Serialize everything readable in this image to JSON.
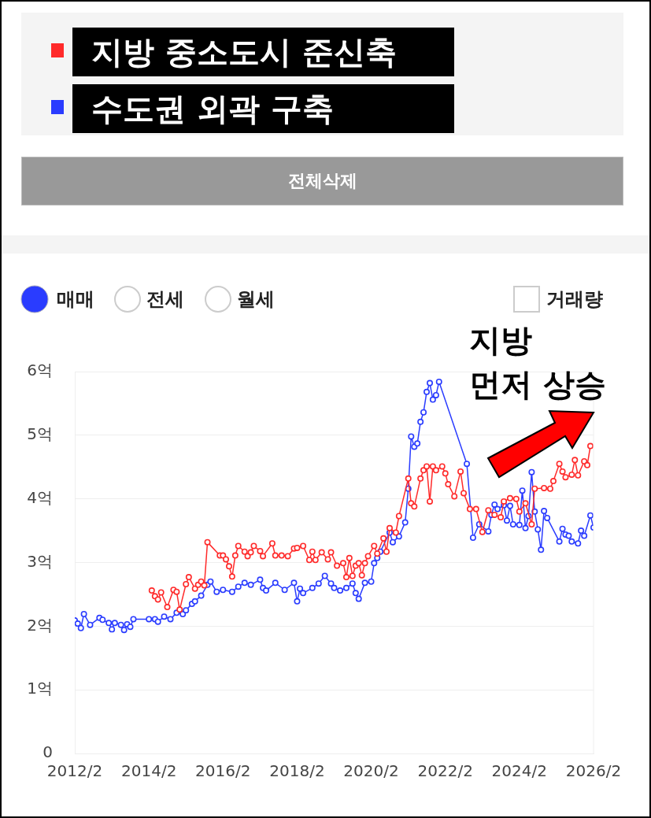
{
  "chart_data": {
    "type": "line",
    "legend": "top left",
    "grid": "y",
    "marker": "circle",
    "line_style": "solid",
    "xlim": [
      "2012-02",
      "2026-02"
    ],
    "xticks": [
      {
        "value": "2012-02",
        "label": "2012/2"
      },
      {
        "value": "2014-02",
        "label": "2014/2"
      },
      {
        "value": "2016-02",
        "label": "2016/2"
      },
      {
        "value": "2018-02",
        "label": "2018/2"
      },
      {
        "value": "2020-02",
        "label": "2020/2"
      },
      {
        "value": "2022-02",
        "label": "2022/2"
      },
      {
        "value": "2024-02",
        "label": "2024/2"
      },
      {
        "value": "2026-02",
        "label": "2026/2"
      }
    ],
    "ylim": [
      0,
      6
    ],
    "yticks": [
      {
        "value": 0,
        "label": "0"
      },
      {
        "value": 1,
        "label": "1억"
      },
      {
        "value": 2,
        "label": "2억"
      },
      {
        "value": 3,
        "label": "3억"
      },
      {
        "value": 4,
        "label": "4억"
      },
      {
        "value": 5,
        "label": "5억"
      },
      {
        "value": 6,
        "label": "6억"
      }
    ],
    "annotations": [
      "전체삭제",
      "매매",
      "전세",
      "월세",
      "거래량",
      "지방\n먼저 상승"
    ],
    "series": [
      {
        "name": "지방 중소도시 준신축",
        "color": "#ff2a2a",
        "x": [
          "2014-03",
          "2014-04",
          "2014-05",
          "2014-06",
          "2014-08",
          "2014-10",
          "2014-11",
          "2014-12",
          "2015-02",
          "2015-03",
          "2015-05",
          "2015-06",
          "2015-07",
          "2015-08",
          "2015-09",
          "2016-01",
          "2016-02",
          "2016-03",
          "2016-04",
          "2016-05",
          "2016-06",
          "2016-07",
          "2016-09",
          "2016-10",
          "2016-11",
          "2016-12",
          "2017-02",
          "2017-03",
          "2017-06",
          "2017-07",
          "2017-09",
          "2017-11",
          "2018-01",
          "2018-02",
          "2018-04",
          "2018-06",
          "2018-07",
          "2018-08",
          "2018-10",
          "2018-12",
          "2019-01",
          "2019-03",
          "2019-05",
          "2019-06",
          "2019-07",
          "2019-08",
          "2019-09",
          "2019-10",
          "2019-11",
          "2019-12",
          "2020-01",
          "2020-03",
          "2020-04",
          "2020-06",
          "2020-07",
          "2020-08",
          "2020-10",
          "2020-11",
          "2021-02",
          "2021-03",
          "2021-04",
          "2021-06",
          "2021-07",
          "2021-08",
          "2021-09",
          "2021-10",
          "2021-11",
          "2022-01",
          "2022-02",
          "2022-03",
          "2022-05",
          "2022-07",
          "2022-08",
          "2022-10",
          "2022-12",
          "2023-02",
          "2023-04",
          "2023-06",
          "2023-08",
          "2023-09",
          "2023-11",
          "2024-01",
          "2024-02",
          "2024-04",
          "2024-06",
          "2024-07",
          "2024-10",
          "2024-12",
          "2025-01",
          "2025-03",
          "2025-04",
          "2025-05",
          "2025-07",
          "2025-08",
          "2025-09",
          "2025-11",
          "2025-12",
          "2026-01"
        ],
        "values": [
          2.56,
          2.47,
          2.42,
          2.53,
          2.3,
          2.57,
          2.54,
          2.26,
          2.66,
          2.77,
          2.59,
          2.65,
          2.7,
          2.64,
          3.32,
          3.11,
          3.11,
          3.05,
          2.94,
          2.78,
          3.11,
          3.26,
          3.17,
          3.1,
          3.16,
          3.26,
          3.18,
          3.1,
          3.3,
          3.11,
          3.11,
          3.1,
          3.22,
          3.23,
          3.26,
          3.04,
          3.17,
          3.04,
          3.16,
          3.05,
          3.16,
          2.95,
          2.99,
          2.77,
          3.07,
          2.79,
          2.95,
          2.99,
          2.8,
          2.99,
          3.1,
          3.26,
          3.14,
          3.38,
          3.17,
          3.54,
          3.47,
          3.73,
          4.32,
          3.93,
          3.88,
          4.32,
          4.45,
          4.51,
          3.96,
          4.51,
          4.45,
          4.51,
          4.4,
          4.23,
          4.04,
          4.43,
          4.09,
          3.84,
          3.84,
          3.48,
          3.82,
          3.75,
          3.71,
          3.96,
          4.01,
          4.0,
          3.8,
          3.93,
          3.6,
          4.16,
          4.17,
          4.16,
          4.28,
          4.55,
          4.43,
          4.34,
          4.38,
          4.61,
          4.37,
          4.59,
          4.53,
          4.83
        ]
      },
      {
        "name": "수도권 외곽 구축",
        "color": "#2a3cff",
        "x": [
          "2012-02",
          "2012-03",
          "2012-04",
          "2012-05",
          "2012-07",
          "2012-10",
          "2012-11",
          "2013-01",
          "2013-02",
          "2013-03",
          "2013-05",
          "2013-06",
          "2013-07",
          "2013-08",
          "2013-09",
          "2014-02",
          "2014-04",
          "2014-05",
          "2014-07",
          "2014-09",
          "2014-11",
          "2015-01",
          "2015-02",
          "2015-04",
          "2015-05",
          "2015-07",
          "2015-09",
          "2015-10",
          "2015-12",
          "2016-02",
          "2016-05",
          "2016-07",
          "2016-09",
          "2016-11",
          "2017-02",
          "2017-03",
          "2017-04",
          "2017-07",
          "2017-10",
          "2018-01",
          "2018-02",
          "2018-03",
          "2018-04",
          "2018-07",
          "2018-09",
          "2018-11",
          "2019-01",
          "2019-02",
          "2019-04",
          "2019-06",
          "2019-08",
          "2019-09",
          "2019-10",
          "2019-12",
          "2020-02",
          "2020-03",
          "2020-04",
          "2020-05",
          "2020-08",
          "2020-09",
          "2020-11",
          "2021-01",
          "2021-02",
          "2021-03",
          "2021-04",
          "2021-05",
          "2021-06",
          "2021-07",
          "2021-08",
          "2021-09",
          "2021-10",
          "2021-11",
          "2021-12",
          "2022-09",
          "2022-11",
          "2023-01",
          "2023-04",
          "2023-05",
          "2023-06",
          "2023-07",
          "2023-09",
          "2023-10",
          "2023-11",
          "2023-12",
          "2024-02",
          "2024-03",
          "2024-04",
          "2024-05",
          "2024-06",
          "2024-07",
          "2024-08",
          "2024-09",
          "2024-10",
          "2024-11",
          "2025-03",
          "2025-04",
          "2025-05",
          "2025-06",
          "2025-07",
          "2025-09",
          "2025-10",
          "2025-11",
          "2026-01",
          "2026-02"
        ],
        "values": [
          2.09,
          2.04,
          1.97,
          2.19,
          2.02,
          2.13,
          2.1,
          2.05,
          1.95,
          2.05,
          2.02,
          1.94,
          2.03,
          1.99,
          2.11,
          2.11,
          2.11,
          2.07,
          2.15,
          2.11,
          2.21,
          2.19,
          2.25,
          2.35,
          2.39,
          2.48,
          2.65,
          2.7,
          2.54,
          2.57,
          2.54,
          2.62,
          2.68,
          2.65,
          2.73,
          2.6,
          2.56,
          2.68,
          2.57,
          2.68,
          2.39,
          2.59,
          2.52,
          2.6,
          2.67,
          2.79,
          2.67,
          2.6,
          2.56,
          2.6,
          2.67,
          2.52,
          2.43,
          2.68,
          2.7,
          2.99,
          3.07,
          3.17,
          3.47,
          3.32,
          3.41,
          3.63,
          4.16,
          4.98,
          4.82,
          4.87,
          5.21,
          5.36,
          5.68,
          5.82,
          5.56,
          5.63,
          5.84,
          4.55,
          3.39,
          3.6,
          3.49,
          3.75,
          3.91,
          3.84,
          3.9,
          3.66,
          3.89,
          3.6,
          3.59,
          4.13,
          3.54,
          3.73,
          4.42,
          3.8,
          3.52,
          3.2,
          3.81,
          3.7,
          3.33,
          3.53,
          3.44,
          3.42,
          3.33,
          3.3,
          3.5,
          3.42,
          3.74,
          3.55
        ]
      }
    ]
  }
}
